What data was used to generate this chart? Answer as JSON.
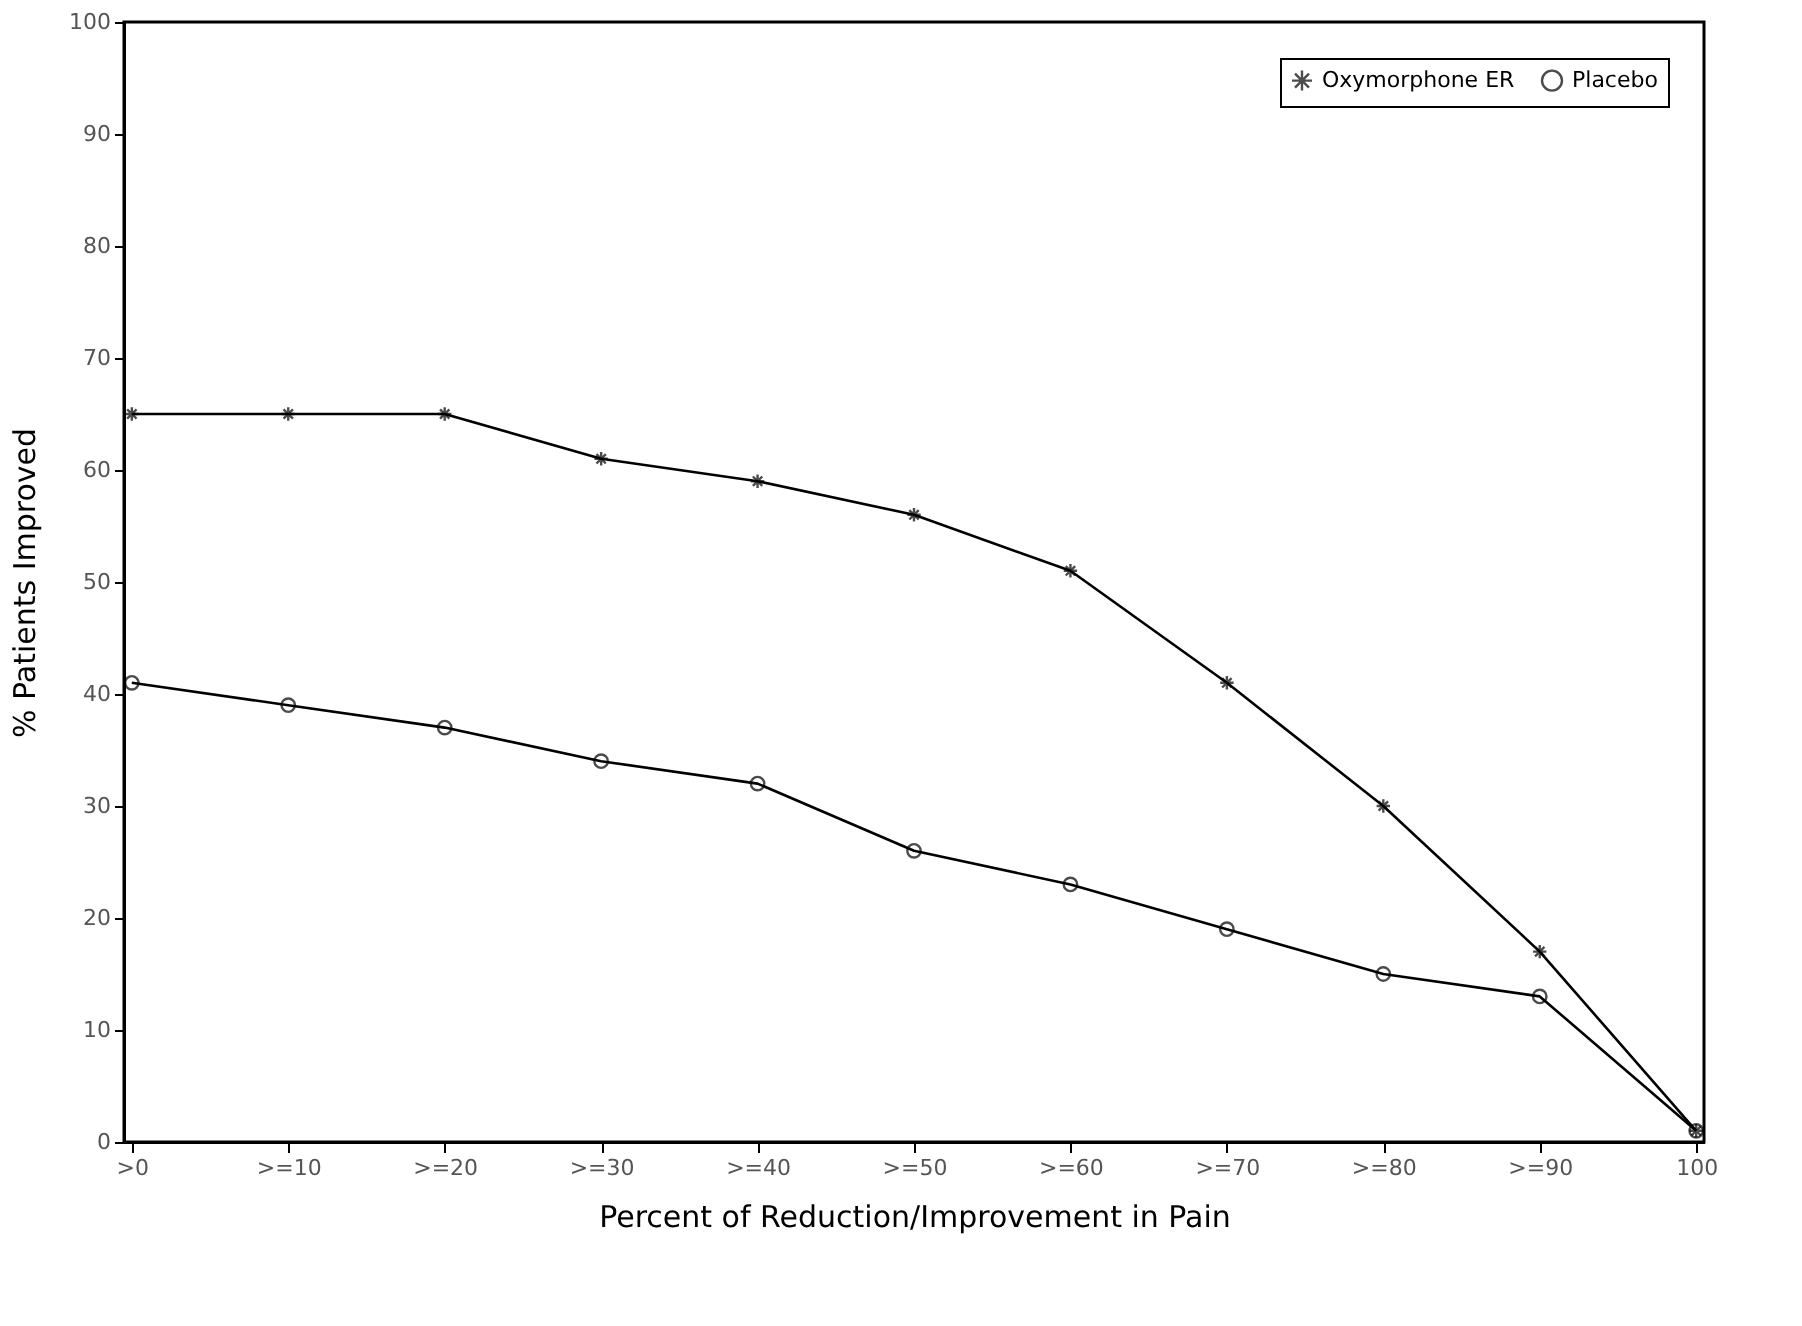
{
  "chart_data": {
    "type": "line",
    "xlabel": "Percent of Reduction/Improvement in Pain",
    "ylabel": "% Patients  Improved",
    "categories": [
      ">0",
      ">=10",
      ">=20",
      ">=30",
      ">=40",
      ">=50",
      ">=60",
      ">=70",
      ">=80",
      ">=90",
      "100"
    ],
    "series": [
      {
        "name": "Oxymorphone ER",
        "color": "#000000",
        "marker": "cross",
        "values": [
          65,
          65,
          65,
          61,
          59,
          56,
          51,
          41,
          30,
          17,
          1
        ]
      },
      {
        "name": "Placebo",
        "color": "#000000",
        "marker": "circle",
        "values": [
          41,
          39,
          37,
          34,
          32,
          26,
          23,
          19,
          15,
          13,
          1
        ]
      }
    ],
    "ylim": [
      0,
      100
    ],
    "yticks": [
      0,
      10,
      20,
      30,
      40,
      50,
      60,
      70,
      80,
      90,
      100
    ],
    "grid": false,
    "legend": "top right",
    "line_style": "solid"
  }
}
